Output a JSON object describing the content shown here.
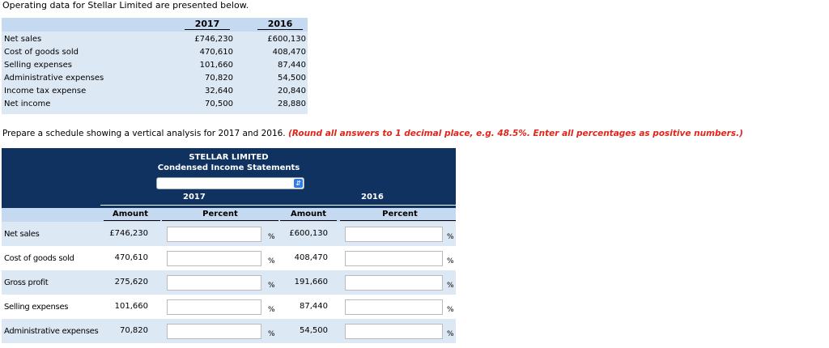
{
  "intro": "Operating data for Stellar Limited are presented below.",
  "operating": {
    "years": [
      "2017",
      "2016"
    ],
    "rows": [
      {
        "label": "Net sales",
        "y2017": "£746,230",
        "y2016": "£600,130"
      },
      {
        "label": "Cost of goods sold",
        "y2017": "470,610",
        "y2016": "408,470"
      },
      {
        "label": "Selling expenses",
        "y2017": "101,660",
        "y2016": "87,440"
      },
      {
        "label": "Administrative expenses",
        "y2017": "70,820",
        "y2016": "54,500"
      },
      {
        "label": "Income tax expense",
        "y2017": "32,640",
        "y2016": "20,840"
      },
      {
        "label": "Net income",
        "y2017": "70,500",
        "y2016": "28,880"
      }
    ]
  },
  "prepare": {
    "text": "Prepare a schedule showing a vertical analysis for 2017 and 2016. ",
    "note": "(Round all answers to 1 decimal place, e.g. 48.5%. Enter all percentages as positive numbers.)"
  },
  "schedule": {
    "company": "STELLAR LIMITED",
    "title": "Condensed Income Statements",
    "select_value": "",
    "year1": "2017",
    "year2": "2016",
    "col_amount": "Amount",
    "col_percent": "Percent",
    "pct_sign": "%",
    "rows": [
      {
        "label": "Net sales",
        "a2017": "£746,230",
        "a2016": "£600,130",
        "p2017": "",
        "p2016": ""
      },
      {
        "label": "Cost of goods sold",
        "a2017": "470,610",
        "a2016": "408,470",
        "p2017": "",
        "p2016": ""
      },
      {
        "label": "Gross profit",
        "a2017": "275,620",
        "a2016": "191,660",
        "p2017": "",
        "p2016": ""
      },
      {
        "label": "Selling expenses",
        "a2017": "101,660",
        "a2016": "87,440",
        "p2017": "",
        "p2016": ""
      },
      {
        "label": "Administrative expenses",
        "a2017": "70,820",
        "a2016": "54,500",
        "p2017": "",
        "p2016": ""
      }
    ]
  },
  "colors": {
    "header_blue": "#0f3260",
    "light_blue": "#c5d9f1",
    "row_blue": "#dde8f5",
    "note_red": "#e0251b"
  }
}
